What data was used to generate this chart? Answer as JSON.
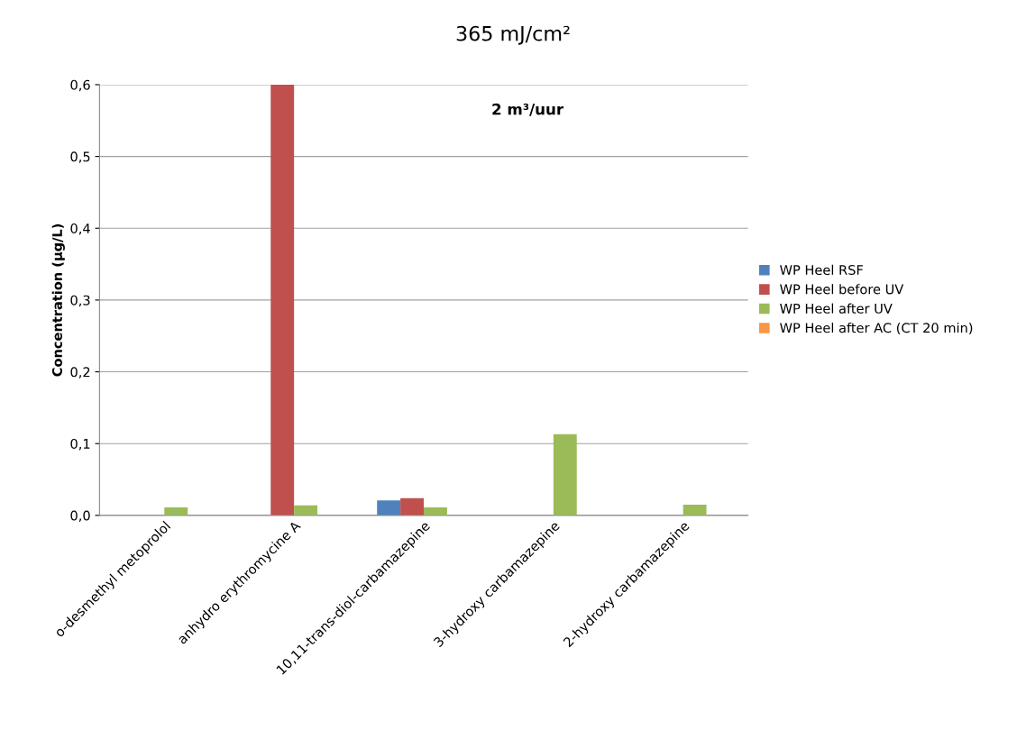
{
  "chart_data": {
    "type": "bar",
    "title": "365 mJ/cm²",
    "ylabel": "Concentration (µg/L)",
    "annotations": [
      "2 m³/uur"
    ],
    "categories": [
      "o-desmethyl metoprolol",
      "anhydro erythromycine A",
      "10,11-trans-diol-carbamazepine",
      "3-hydroxy carbamazepine",
      "2-hydroxy carbamazepine"
    ],
    "series": [
      {
        "name": "WP Heel RSF",
        "color": "#4f81bd",
        "values": [
          null,
          null,
          0.021,
          null,
          null
        ]
      },
      {
        "name": "WP Heel before UV",
        "color": "#c0504d",
        "values": [
          null,
          0.6,
          0.024,
          null,
          null
        ]
      },
      {
        "name": "WP Heel after UV",
        "color": "#9bbb59",
        "values": [
          0.011,
          0.014,
          0.011,
          0.113,
          0.015
        ]
      },
      {
        "name": "WP Heel after AC (CT 20 min)",
        "color": "#f79646",
        "values": [
          null,
          null,
          null,
          null,
          null
        ]
      }
    ],
    "ylim": [
      0,
      0.6
    ],
    "yticks": [
      {
        "value": 0,
        "label": "0,0"
      },
      {
        "value": 0.1,
        "label": "0,1"
      },
      {
        "value": 0.2,
        "label": "0,2"
      },
      {
        "value": 0.3,
        "label": "0,3"
      },
      {
        "value": 0.4,
        "label": "0,4"
      },
      {
        "value": 0.5,
        "label": "0,5"
      },
      {
        "value": 0.6,
        "label": "0,6"
      }
    ],
    "grid": "y",
    "legend": "right"
  }
}
